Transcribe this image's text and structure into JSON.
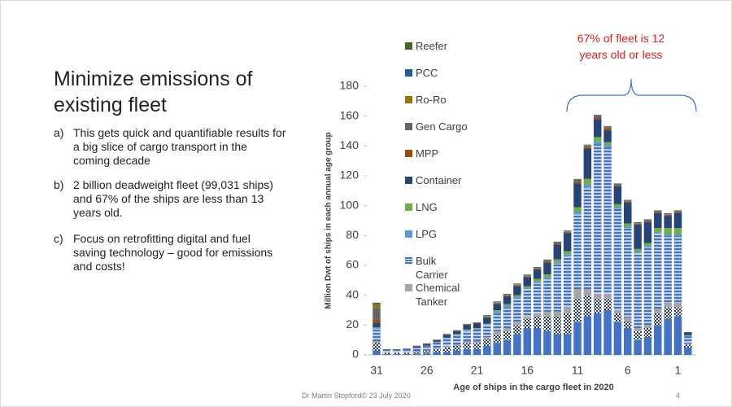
{
  "slide": {
    "title": "Minimize emissions of existing fleet",
    "bullets": [
      {
        "label": "a)",
        "text": "This gets quick and quantifiable results for a big slice of cargo transport in the coming decade"
      },
      {
        "label": "b)",
        "text": "2 billion deadweight fleet (99,031 ships) and 67% of the ships are less than 13 years old."
      },
      {
        "label": "c)",
        "text": "Focus on retrofitting digital  and fuel saving technology – good for emissions and costs!"
      }
    ],
    "footer": "Dr Martin Stopford© 23 July 2020",
    "page_number": "4"
  },
  "chart_data": {
    "type": "stacked-bar",
    "annotation": "67% of fleet is 12 years old or less",
    "ylabel": "Million Dwt of ships in each annual age group",
    "xlabel": "Age of ships in the cargo fleet in 2020",
    "categories": [
      "31",
      null,
      null,
      null,
      null,
      "26",
      null,
      null,
      null,
      null,
      "21",
      null,
      null,
      null,
      null,
      "16",
      null,
      null,
      null,
      null,
      "11",
      null,
      null,
      null,
      null,
      "6",
      null,
      null,
      null,
      null,
      "1",
      null
    ],
    "ylim": [
      0,
      180
    ],
    "yticks": [
      0,
      20,
      40,
      60,
      80,
      100,
      120,
      140,
      160,
      180
    ],
    "series": [
      {
        "color": "#4472c4",
        "values": [
          3,
          0.5,
          0.5,
          0.5,
          1,
          1,
          2,
          2,
          3,
          4,
          4,
          6,
          8,
          10,
          14,
          18,
          18,
          16,
          14,
          14,
          22,
          26,
          28,
          30,
          22,
          18,
          10,
          12,
          20,
          24,
          26,
          5
        ]
      },
      {
        "color": "#1f3864",
        "pattern": "checker",
        "values": [
          5,
          1,
          1,
          1,
          1,
          1.5,
          2,
          3,
          3,
          4,
          4,
          5,
          6,
          6,
          6,
          6,
          8,
          10,
          12,
          14,
          16,
          14,
          10,
          8,
          6,
          5,
          6,
          6,
          8,
          8,
          6,
          2
        ]
      },
      {
        "name": "Chemical Tanker",
        "color": "#a5a5a5",
        "values": [
          1,
          0.3,
          0.3,
          0.3,
          0.5,
          0.5,
          0.5,
          1,
          1,
          1,
          1,
          1,
          2,
          2,
          2,
          2,
          2,
          3,
          3,
          4,
          6,
          4,
          3,
          3,
          2,
          2,
          2,
          2,
          3,
          3,
          3,
          0.5
        ]
      },
      {
        "name": "Bulk Carrier",
        "color": "#4472c4",
        "pattern": "stripes",
        "values": [
          8.5,
          1,
          1,
          1.5,
          2,
          3,
          4,
          5,
          6,
          7,
          8,
          8,
          12,
          14,
          16,
          18,
          20,
          22,
          32,
          34,
          50,
          68,
          100,
          98,
          68,
          60,
          50,
          52,
          50,
          45,
          45,
          5
        ]
      },
      {
        "name": "LPG",
        "color": "#5b9bd5",
        "values": [
          0.5,
          0.2,
          0.2,
          0.2,
          0.2,
          0.3,
          0.3,
          0.5,
          0.5,
          0.5,
          0.5,
          0.5,
          1,
          1,
          1,
          1,
          1,
          1,
          1,
          1.5,
          2,
          2,
          2,
          1.5,
          1,
          1,
          1,
          1,
          1,
          1,
          1,
          0.2
        ]
      },
      {
        "name": "LNG",
        "color": "#70ad47",
        "values": [
          0.5,
          0,
          0,
          0,
          0,
          0,
          0,
          0,
          0.5,
          0.5,
          0.5,
          0.5,
          1,
          1,
          1,
          1,
          2,
          2,
          2,
          2,
          3,
          4,
          3,
          2,
          2,
          2,
          2,
          2,
          3,
          4,
          4,
          0.5
        ]
      },
      {
        "name": "Container",
        "color": "#264478",
        "values": [
          3,
          0.5,
          0.5,
          0.5,
          1,
          1,
          1,
          2,
          2,
          3,
          3,
          4,
          4,
          5,
          6,
          6,
          6,
          8,
          10,
          12,
          16,
          20,
          12,
          8,
          12,
          14,
          16,
          14,
          10,
          8,
          10,
          2
        ]
      },
      {
        "name": "MPP",
        "color": "#9e480e",
        "values": [
          2,
          0,
          0,
          0,
          0.2,
          0.2,
          0.2,
          0.3,
          0.3,
          0.5,
          0.5,
          0.5,
          0.5,
          0.5,
          0.5,
          0.5,
          0.5,
          0.5,
          0.5,
          0.5,
          1,
          1,
          1,
          1,
          0.5,
          0.5,
          0.5,
          0.5,
          0.5,
          0.5,
          0.5,
          0
        ]
      },
      {
        "name": "Gen Cargo",
        "color": "#636363",
        "values": [
          8,
          0.3,
          0.3,
          0.3,
          0.3,
          0.3,
          0.3,
          0.3,
          0.3,
          0.3,
          0.3,
          0.3,
          0.5,
          0.5,
          0.5,
          0.5,
          0.5,
          0.5,
          0.5,
          0.5,
          1,
          1,
          1,
          1,
          0.5,
          0.5,
          0.5,
          0.5,
          0.5,
          0.5,
          0.5,
          0
        ]
      },
      {
        "name": "Ro-Ro",
        "color": "#997300",
        "values": [
          2,
          0,
          0,
          0,
          0,
          0,
          0,
          0,
          0,
          0,
          0,
          0.3,
          0.3,
          0.3,
          0.3,
          0.3,
          0.3,
          0.3,
          0.3,
          0.3,
          0.3,
          0.3,
          0.3,
          0.3,
          0.3,
          0.3,
          0.3,
          0.3,
          0.3,
          0.3,
          0.3,
          0
        ]
      },
      {
        "name": "PCC",
        "color": "#255e91",
        "values": [
          0.5,
          0,
          0,
          0,
          0,
          0,
          0,
          0,
          0,
          0,
          0,
          0.3,
          0.3,
          0.3,
          0.3,
          0.3,
          0.3,
          0.3,
          0.3,
          0.3,
          0.3,
          0.3,
          0.3,
          0.3,
          0.3,
          0.3,
          0.3,
          0.3,
          0.3,
          0.3,
          0.3,
          0
        ]
      },
      {
        "name": "Reefer",
        "color": "#43682b",
        "values": [
          1,
          0,
          0,
          0,
          0,
          0,
          0,
          0,
          0,
          0,
          0,
          0.3,
          0.3,
          0.3,
          0.3,
          0.3,
          0.3,
          0.3,
          0.3,
          0.3,
          0.3,
          0.3,
          0.3,
          0.3,
          0.3,
          0.3,
          0.3,
          0.3,
          0.3,
          0.3,
          0.3,
          0
        ]
      }
    ]
  }
}
